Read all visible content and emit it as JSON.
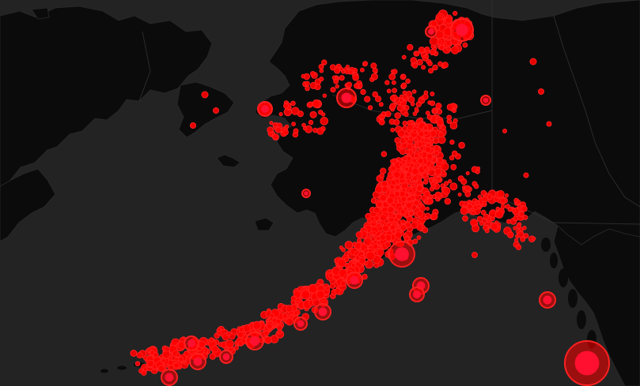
{
  "map": {
    "theme": "dark",
    "colors": {
      "water": "#232323",
      "land": "#0b0b0b",
      "border": "#2e2e2e",
      "marker_fill": "#ff0000",
      "marker_core": "#ff1030"
    },
    "layers": {
      "basemap": "dark-land-and-water",
      "markers": "earthquake-epicenters"
    }
  }
}
